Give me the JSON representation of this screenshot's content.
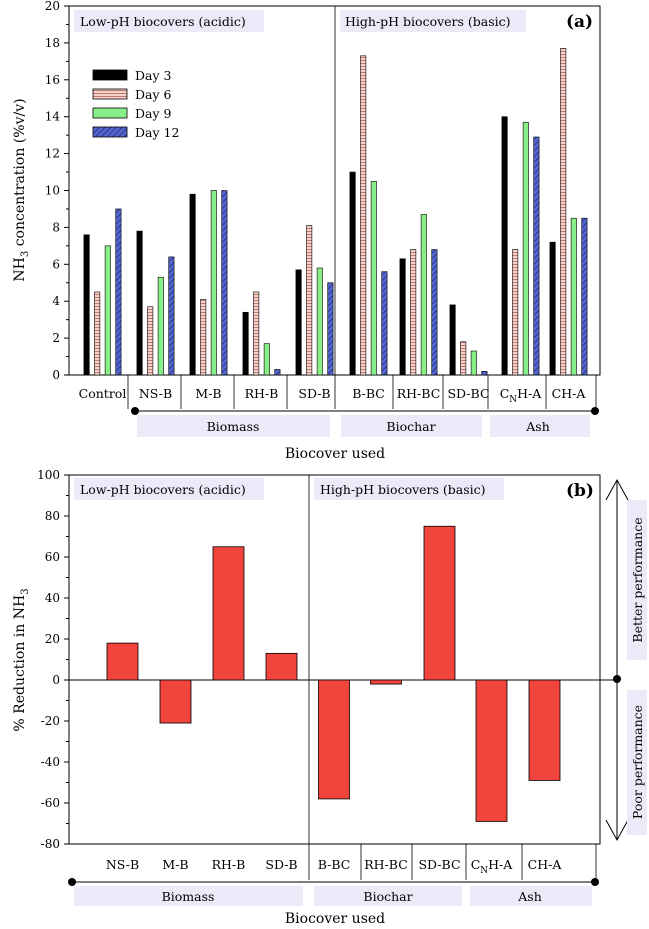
{
  "colors": {
    "day3": "#000000",
    "day6": "#f6d2cc",
    "day6_stripe": "#c07a72",
    "day9": "#88ee88",
    "day12": "#5566cc",
    "day12_stripe": "#1d2a80",
    "reduction_bar": "#f0443c",
    "label_box": "#eaeaf8"
  },
  "chart_data": [
    {
      "panel": "a",
      "type": "bar",
      "panel_tag": "(a)",
      "ylabel": "NH3 concentration (%v/v)",
      "ylabel_parts": {
        "main": "NH",
        "sub": "3",
        "rest": " concentration (%v/v)"
      },
      "xlabel": "Biocover used",
      "ylim": [
        0,
        20
      ],
      "yticks": [
        "0",
        "2",
        "4",
        "6",
        "8",
        "10",
        "12",
        "14",
        "16",
        "18",
        "20"
      ],
      "regions": [
        "Low-pH biocovers (acidic)",
        "High-pH biocovers (basic)"
      ],
      "categories": [
        "Control",
        "NS-B",
        "M-B",
        "RH-B",
        "SD-B",
        "B-BC",
        "RH-BC",
        "SD-BC",
        "CNH-A",
        "CH-A"
      ],
      "category_labels": [
        {
          "main": "Control",
          "sub": "",
          "rest": ""
        },
        {
          "main": "NS-B",
          "sub": "",
          "rest": ""
        },
        {
          "main": "M-B",
          "sub": "",
          "rest": ""
        },
        {
          "main": "RH-B",
          "sub": "",
          "rest": ""
        },
        {
          "main": "SD-B",
          "sub": "",
          "rest": ""
        },
        {
          "main": "B-BC",
          "sub": "",
          "rest": ""
        },
        {
          "main": "RH-BC",
          "sub": "",
          "rest": ""
        },
        {
          "main": "SD-BC",
          "sub": "",
          "rest": ""
        },
        {
          "main": "C",
          "sub": "N",
          "rest": "H-A"
        },
        {
          "main": "CH-A",
          "sub": "",
          "rest": ""
        }
      ],
      "groups": [
        "Biomass",
        "Biochar",
        "Ash"
      ],
      "series": [
        {
          "name": "Day 3",
          "values": [
            7.6,
            7.8,
            9.8,
            3.4,
            5.7,
            11.0,
            6.3,
            3.8,
            14.0,
            7.2
          ]
        },
        {
          "name": "Day 6",
          "values": [
            4.5,
            3.7,
            4.1,
            4.5,
            8.1,
            17.3,
            6.8,
            1.8,
            6.8,
            17.7
          ]
        },
        {
          "name": "Day 9",
          "values": [
            7.0,
            5.3,
            10.0,
            1.7,
            5.8,
            10.5,
            8.7,
            1.3,
            13.7,
            8.5
          ]
        },
        {
          "name": "Day 12",
          "values": [
            9.0,
            6.4,
            10.0,
            0.3,
            5.0,
            5.6,
            6.8,
            0.2,
            12.9,
            8.5
          ]
        }
      ],
      "legend_position": "top-left"
    },
    {
      "panel": "b",
      "type": "bar",
      "panel_tag": "(b)",
      "ylabel": "% Reduction in NH3",
      "ylabel_parts": {
        "main": "% Reduction in NH",
        "sub": "3",
        "rest": ""
      },
      "xlabel": "Biocover used",
      "ylim": [
        -80,
        100
      ],
      "yticks": [
        "-80",
        "-60",
        "-40",
        "-20",
        "0",
        "20",
        "40",
        "60",
        "80",
        "100"
      ],
      "regions": [
        "Low-pH biocovers (acidic)",
        "High-pH biocovers (basic)"
      ],
      "categories": [
        "NS-B",
        "M-B",
        "RH-B",
        "SD-B",
        "B-BC",
        "RH-BC",
        "SD-BC",
        "CNH-A",
        "CH-A"
      ],
      "category_labels": [
        {
          "main": "NS-B",
          "sub": "",
          "rest": ""
        },
        {
          "main": "M-B",
          "sub": "",
          "rest": ""
        },
        {
          "main": "RH-B",
          "sub": "",
          "rest": ""
        },
        {
          "main": "SD-B",
          "sub": "",
          "rest": ""
        },
        {
          "main": "B-BC",
          "sub": "",
          "rest": ""
        },
        {
          "main": "RH-BC",
          "sub": "",
          "rest": ""
        },
        {
          "main": "SD-BC",
          "sub": "",
          "rest": ""
        },
        {
          "main": "C",
          "sub": "N",
          "rest": "H-A"
        },
        {
          "main": "CH-A",
          "sub": "",
          "rest": ""
        }
      ],
      "groups": [
        "Biomass",
        "Biochar",
        "Ash"
      ],
      "values": [
        18,
        -21,
        65,
        13,
        -58,
        -2,
        75,
        -69,
        -49
      ],
      "side_labels": [
        "Better performance",
        "Poor performance"
      ]
    }
  ]
}
